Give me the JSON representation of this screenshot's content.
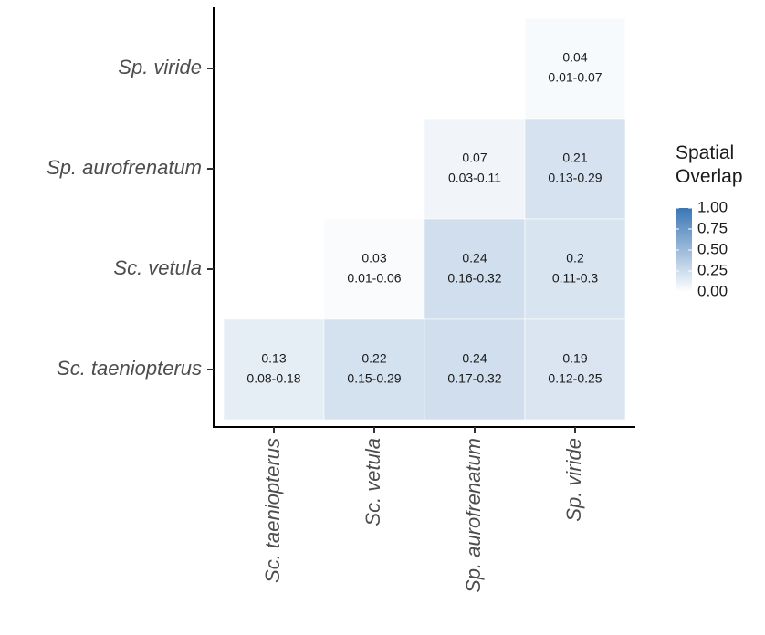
{
  "chart_data": {
    "type": "heatmap",
    "x": [
      "Sc. taeniopterus",
      "Sc. vetula",
      "Sp. aurofrenatum",
      "Sp. viride"
    ],
    "y": [
      "Sp. viride",
      "Sp. aurofrenatum",
      "Sc. vetula",
      "Sc. taeniopterus"
    ],
    "values": [
      [
        null,
        null,
        null,
        0.04
      ],
      [
        null,
        null,
        0.07,
        0.21
      ],
      [
        null,
        0.03,
        0.24,
        0.2
      ],
      [
        0.13,
        0.22,
        0.24,
        0.19
      ]
    ],
    "intervals": [
      [
        null,
        null,
        null,
        "0.01-0.07"
      ],
      [
        null,
        null,
        "0.03-0.11",
        "0.13-0.29"
      ],
      [
        null,
        "0.01-0.06",
        "0.16-0.32",
        "0.11-0.3"
      ],
      [
        "0.08-0.18",
        "0.15-0.29",
        "0.17-0.32",
        "0.12-0.25"
      ]
    ],
    "legend_title": "Spatial Overlap",
    "color_low": "#ffffff",
    "color_high": "#3a76b5",
    "clim": [
      0,
      1
    ],
    "cticks": [
      {
        "value": 0,
        "label": "0.00"
      },
      {
        "value": 0.25,
        "label": "0.25"
      },
      {
        "value": 0.5,
        "label": "0.50"
      },
      {
        "value": 0.75,
        "label": "0.75"
      },
      {
        "value": 1,
        "label": "1.00"
      }
    ]
  }
}
